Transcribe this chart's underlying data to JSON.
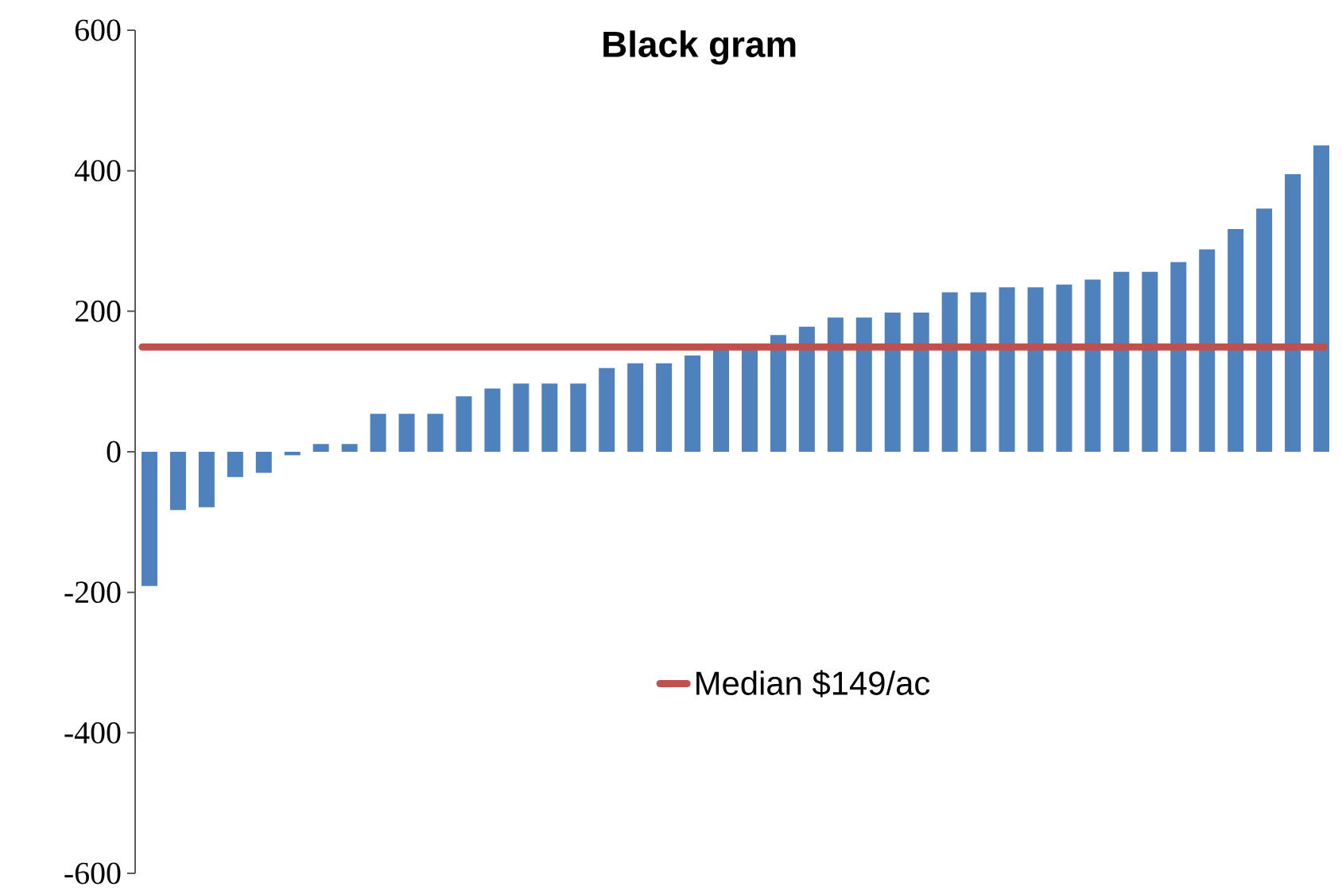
{
  "chart_data": {
    "type": "bar",
    "title": "Black gram",
    "categories": [
      null,
      null,
      null,
      null,
      null,
      null,
      null,
      null,
      null,
      null,
      null,
      null,
      null,
      null,
      null,
      null,
      null,
      null,
      null,
      null,
      null,
      null,
      null,
      null,
      null,
      null,
      null,
      null,
      null,
      null,
      null,
      null,
      null,
      null,
      null,
      null,
      null,
      null,
      null,
      null,
      null,
      null
    ],
    "values": [
      -191,
      -83,
      -79,
      -36,
      -30,
      -5,
      11,
      11,
      54,
      54,
      54,
      79,
      90,
      97,
      97,
      97,
      119,
      126,
      126,
      137,
      150,
      150,
      166,
      178,
      191,
      191,
      198,
      198,
      227,
      227,
      234,
      234,
      238,
      245,
      256,
      256,
      270,
      288,
      317,
      346,
      395,
      436
    ],
    "color": "#4f81bd",
    "ylim": [
      -600,
      600
    ],
    "yticks": [
      -600,
      -400,
      -200,
      0,
      200,
      400,
      600
    ],
    "ref_lines": [
      {
        "axis": "y",
        "value": 149,
        "label": "Median $149/ac",
        "color": "#c0504d"
      }
    ],
    "legend": "bottom right"
  }
}
